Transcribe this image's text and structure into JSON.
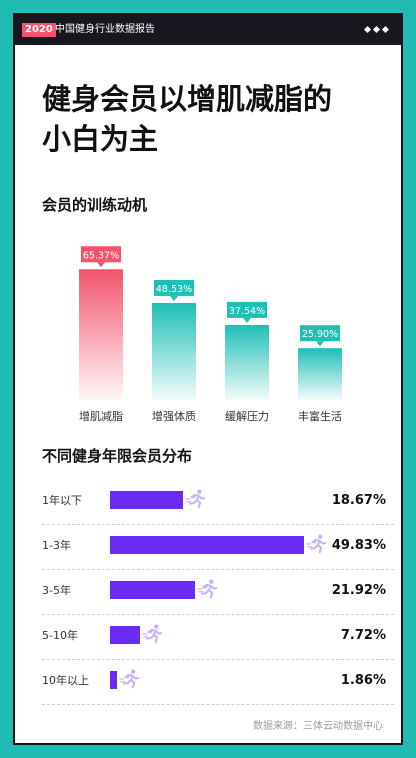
{
  "header": {
    "year": "2020",
    "report_title": "中国健身行业数据报告"
  },
  "headline": {
    "line1": "健身会员以增肌减脂的",
    "line2": "小白为主"
  },
  "section_motive": {
    "title": "会员的训练动机"
  },
  "section_distribution": {
    "title": "不同健身年限会员分布"
  },
  "chart_data": [
    {
      "type": "bar",
      "title": "会员的训练动机",
      "categories": [
        "增肌减脂",
        "增强体质",
        "缓解压力",
        "丰富生活"
      ],
      "values": [
        65.37,
        48.53,
        37.54,
        25.9
      ],
      "value_labels": [
        "65.37%",
        "48.53%",
        "37.54%",
        "25.90%"
      ],
      "unit": "%",
      "ylim": [
        0,
        70
      ],
      "grid": false,
      "colors": [
        "#f2546c",
        "#1fbfb6",
        "#1fbfb6",
        "#1fbfb6"
      ]
    },
    {
      "type": "bar",
      "orientation": "horizontal",
      "title": "不同健身年限会员分布",
      "categories": [
        "1年以下",
        "1-3年",
        "3-5年",
        "5-10年",
        "10年以上"
      ],
      "values": [
        18.67,
        49.83,
        21.92,
        7.72,
        1.86
      ],
      "value_labels": [
        "18.67%",
        "49.83%",
        "21.92%",
        "7.72%",
        "1.86%"
      ],
      "unit": "%",
      "xlim": [
        0,
        50
      ],
      "colors": [
        "#6a2cf2"
      ],
      "marker_icon": "runner-icon"
    }
  ],
  "footer": {
    "source": "数据来源：三体云动数据中心"
  },
  "colors": {
    "accent_red": "#f2546c",
    "accent_teal": "#1fbfb6",
    "accent_purple": "#6a2cf2",
    "border_bg": "#21bdb5"
  }
}
